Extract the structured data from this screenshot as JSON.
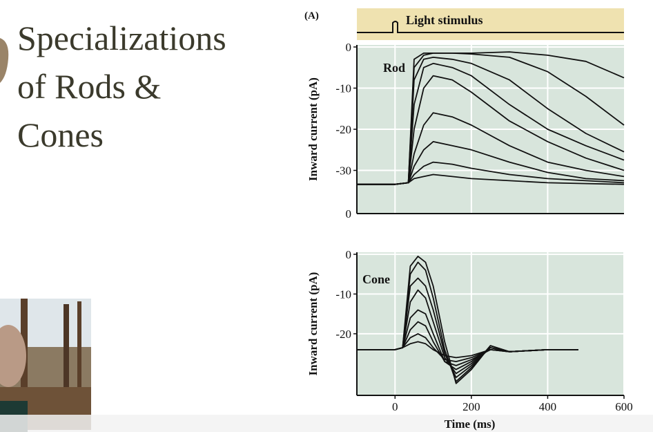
{
  "slide": {
    "title_lines": [
      "Specializations",
      "of Rods &",
      "Cones"
    ]
  },
  "figure": {
    "panel_label": "(A)",
    "stimulus_label": "Light stimulus"
  },
  "chart_data": [
    {
      "type": "line",
      "annotation": "Rod",
      "ylabel": "Inward current (pA)",
      "plot_color": "#d8e5dc",
      "grid": true,
      "baseline_label": "0",
      "xlim": [
        -100,
        600
      ],
      "xticks": [
        0,
        200,
        400
      ],
      "ylim": [
        -40.5,
        0.5
      ],
      "yticks": [
        0,
        -10,
        -20,
        -30
      ],
      "x": [
        -100,
        0,
        35,
        50,
        75,
        100,
        150,
        200,
        300,
        400,
        500,
        600
      ],
      "series": [
        {
          "color": "#111111",
          "values": [
            -33.4,
            -33.4,
            -33,
            -3,
            -1.5,
            -1.5,
            -1.5,
            -1.5,
            -1.2,
            -2,
            -3.5,
            -7.5
          ]
        },
        {
          "color": "#111111",
          "values": [
            -33.4,
            -33.4,
            -33,
            -5,
            -2,
            -1.5,
            -1.5,
            -1.7,
            -2.5,
            -6,
            -12,
            -19
          ]
        },
        {
          "color": "#111111",
          "values": [
            -33.4,
            -33.4,
            -33,
            -8,
            -3,
            -2.5,
            -3,
            -4,
            -8,
            -15,
            -21,
            -25.5
          ]
        },
        {
          "color": "#111111",
          "values": [
            -33.4,
            -33.4,
            -33,
            -14,
            -5,
            -4,
            -5,
            -7,
            -14,
            -20,
            -24,
            -27.5
          ]
        },
        {
          "color": "#111111",
          "values": [
            -33.4,
            -33.4,
            -33,
            -20,
            -10,
            -7,
            -8,
            -11,
            -18,
            -23,
            -27,
            -30
          ]
        },
        {
          "color": "#111111",
          "values": [
            -33.4,
            -33.4,
            -33,
            -26,
            -19,
            -16,
            -17,
            -19,
            -24,
            -28,
            -30,
            -31.5
          ]
        },
        {
          "color": "#111111",
          "values": [
            -33.4,
            -33.4,
            -33,
            -29,
            -25,
            -23,
            -24,
            -25,
            -28,
            -30.5,
            -32,
            -32.5
          ]
        },
        {
          "color": "#111111",
          "values": [
            -33.4,
            -33.4,
            -33,
            -31,
            -29,
            -28,
            -28.5,
            -29.5,
            -31,
            -32,
            -32.5,
            -33
          ]
        },
        {
          "color": "#111111",
          "values": [
            -33.4,
            -33.4,
            -33,
            -32,
            -31.5,
            -31,
            -31.5,
            -32,
            -32.5,
            -33,
            -33.2,
            -33.4
          ]
        }
      ]
    },
    {
      "type": "line",
      "annotation": "Cone",
      "ylabel": "Inward current (pA)",
      "xlabel": "Time (ms)",
      "plot_color": "#d8e5dc",
      "grid": true,
      "xlim": [
        -100,
        600
      ],
      "xticks": [
        0,
        200,
        400,
        600
      ],
      "ylim": [
        -35.5,
        0.5
      ],
      "yticks": [
        0,
        -10,
        -20
      ],
      "x": [
        -100,
        0,
        20,
        40,
        60,
        80,
        100,
        130,
        160,
        200,
        250,
        300,
        400,
        480
      ],
      "series": [
        {
          "color": "#111111",
          "values": [
            -24,
            -24,
            -23.5,
            -3,
            -0.5,
            -2,
            -8,
            -22,
            -32.5,
            -29,
            -23,
            -24.5,
            -24,
            -24
          ]
        },
        {
          "color": "#111111",
          "values": [
            -24,
            -24,
            -23.5,
            -5,
            -2,
            -4,
            -11,
            -24,
            -32,
            -28.5,
            -23,
            -24.5,
            -24,
            -24
          ]
        },
        {
          "color": "#111111",
          "values": [
            -24,
            -24,
            -23.5,
            -8,
            -6,
            -8,
            -14,
            -25,
            -31,
            -28,
            -23.5,
            -24.5,
            -24,
            -24
          ]
        },
        {
          "color": "#111111",
          "values": [
            -24,
            -24,
            -23.5,
            -12,
            -9,
            -11,
            -17,
            -26,
            -30,
            -27.5,
            -23.5,
            -24.5,
            -24,
            -24
          ]
        },
        {
          "color": "#111111",
          "values": [
            -24,
            -24,
            -23.5,
            -16,
            -14,
            -15,
            -20,
            -27,
            -29,
            -27,
            -23.5,
            -24.5,
            -24,
            -24
          ]
        },
        {
          "color": "#111111",
          "values": [
            -24,
            -24,
            -23.5,
            -19,
            -17,
            -18,
            -22,
            -27,
            -28,
            -26.5,
            -24,
            -24.5,
            -24,
            -24
          ]
        },
        {
          "color": "#111111",
          "values": [
            -24,
            -24,
            -23.5,
            -21,
            -20,
            -21,
            -23.5,
            -26.5,
            -27,
            -26,
            -24,
            -24.5,
            -24,
            -24
          ]
        },
        {
          "color": "#111111",
          "values": [
            -24,
            -24,
            -23.5,
            -22.5,
            -22,
            -22.5,
            -24,
            -25.5,
            -26,
            -25.5,
            -24,
            -24.5,
            -24,
            -24
          ]
        }
      ]
    }
  ]
}
